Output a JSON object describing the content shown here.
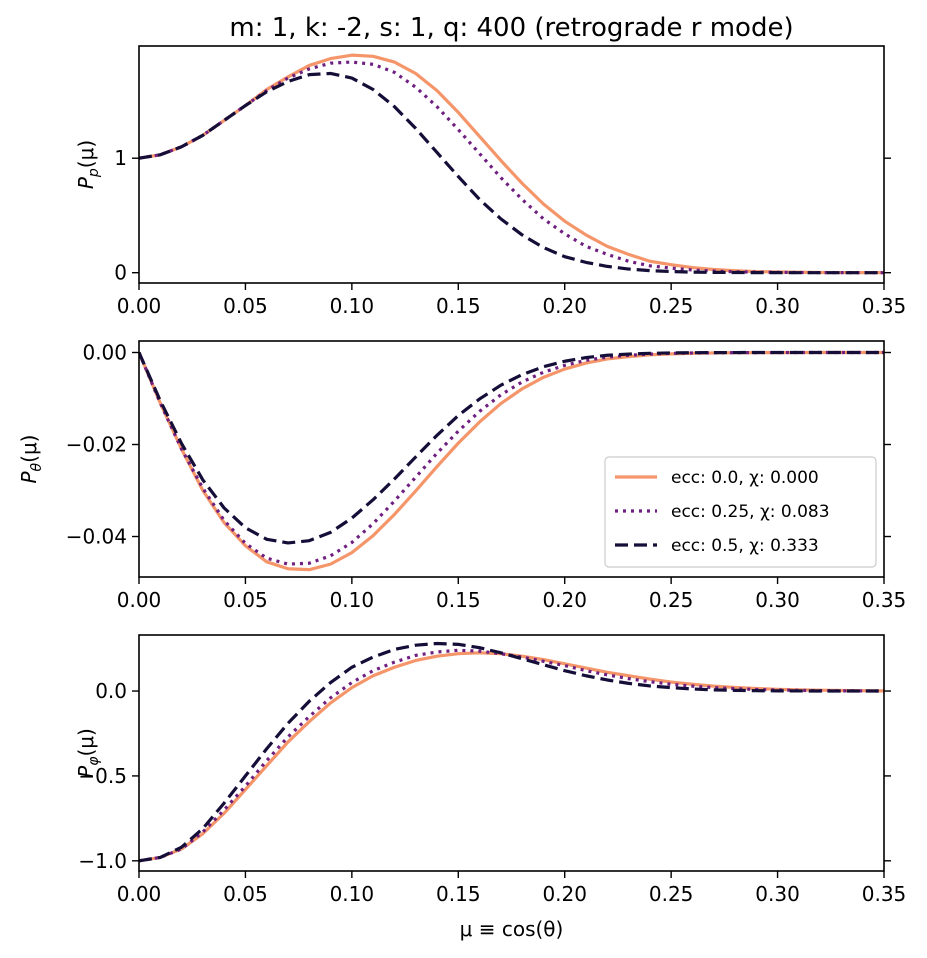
{
  "chart_data": {
    "type": "line",
    "title": "m: 1, k: -2, s: 1, q: 400  (retrograde r mode)",
    "xlabel": "μ ≡ cos(θ)",
    "xlim": [
      0,
      0.35
    ],
    "xticks": [
      0,
      0.05,
      0.1,
      0.15,
      0.2,
      0.25,
      0.3,
      0.35
    ],
    "xtick_labels": [
      "0.00",
      "0.05",
      "0.10",
      "0.15",
      "0.20",
      "0.25",
      "0.30",
      "0.35"
    ],
    "x": [
      0,
      0.01,
      0.02,
      0.03,
      0.04,
      0.05,
      0.06,
      0.07,
      0.08,
      0.09,
      0.1,
      0.11,
      0.12,
      0.13,
      0.14,
      0.15,
      0.16,
      0.17,
      0.18,
      0.19,
      0.2,
      0.21,
      0.22,
      0.23,
      0.24,
      0.25,
      0.26,
      0.27,
      0.28,
      0.29,
      0.3,
      0.31,
      0.32,
      0.33,
      0.34,
      0.35
    ],
    "legend": {
      "location": "right",
      "entries": [
        {
          "label": "ecc: 0.0, χ: 0.000",
          "color": "#f4956a",
          "style": "solid"
        },
        {
          "label": "ecc: 0.25, χ: 0.083",
          "color": "#6f1f80",
          "style": "dotted"
        },
        {
          "label": "ecc: 0.5, χ: 0.333",
          "color": "#150e38",
          "style": "dashed"
        }
      ]
    },
    "panels": [
      {
        "ylabel": "P_p(μ)",
        "ylim": [
          -0.09,
          1.98
        ],
        "yticks": [
          0,
          1
        ],
        "ytick_labels": [
          "0",
          "1"
        ],
        "series": [
          {
            "name": "ecc: 0.0, χ: 0.000",
            "values": [
              1.0,
              1.03,
              1.1,
              1.2,
              1.33,
              1.46,
              1.6,
              1.71,
              1.81,
              1.87,
              1.9,
              1.89,
              1.84,
              1.74,
              1.59,
              1.4,
              1.19,
              0.98,
              0.78,
              0.6,
              0.45,
              0.33,
              0.23,
              0.16,
              0.1,
              0.07,
              0.045,
              0.028,
              0.017,
              0.01,
              0.006,
              0.004,
              0.002,
              0.001,
              0.0006,
              0.0003
            ]
          },
          {
            "name": "ecc: 0.25, χ: 0.083",
            "values": [
              1.0,
              1.03,
              1.1,
              1.2,
              1.33,
              1.46,
              1.59,
              1.7,
              1.78,
              1.83,
              1.84,
              1.82,
              1.75,
              1.62,
              1.45,
              1.25,
              1.04,
              0.83,
              0.64,
              0.47,
              0.34,
              0.23,
              0.16,
              0.1,
              0.06,
              0.04,
              0.024,
              0.014,
              0.008,
              0.005,
              0.003,
              0.0015,
              0.0008,
              0.0004,
              0.0002,
              0.0001
            ]
          },
          {
            "name": "ecc: 0.5, χ: 0.333",
            "values": [
              1.0,
              1.03,
              1.1,
              1.2,
              1.33,
              1.46,
              1.58,
              1.67,
              1.73,
              1.74,
              1.7,
              1.6,
              1.45,
              1.26,
              1.05,
              0.84,
              0.64,
              0.47,
              0.33,
              0.22,
              0.14,
              0.09,
              0.055,
              0.032,
              0.018,
              0.01,
              0.005,
              0.003,
              0.0015,
              0.0007,
              0.0003,
              0.0001,
              0.0,
              0.0,
              0.0,
              0.0
            ]
          }
        ]
      },
      {
        "ylabel": "P_θ(μ)",
        "ylim": [
          -0.0488,
          0.0025
        ],
        "yticks": [
          0,
          -0.02,
          -0.04
        ],
        "ytick_labels": [
          "0.00",
          "−0.02",
          "−0.04"
        ],
        "series": [
          {
            "name": "ecc: 0.0, χ: 0.000",
            "values": [
              0.0,
              -0.011,
              -0.021,
              -0.03,
              -0.037,
              -0.042,
              -0.0455,
              -0.047,
              -0.0472,
              -0.046,
              -0.0435,
              -0.0398,
              -0.0352,
              -0.0301,
              -0.0248,
              -0.0197,
              -0.0151,
              -0.0111,
              -0.0079,
              -0.0054,
              -0.0036,
              -0.0023,
              -0.0014,
              -0.0009,
              -0.0005,
              -0.0003,
              -0.00017,
              -0.0001,
              -5e-05,
              -3e-05,
              -2e-05,
              -1e-05,
              0.0,
              0.0,
              0.0,
              0.0
            ]
          },
          {
            "name": "ecc: 0.25, χ: 0.083",
            "values": [
              0.0,
              -0.011,
              -0.021,
              -0.0295,
              -0.0365,
              -0.0415,
              -0.0447,
              -0.046,
              -0.0458,
              -0.0442,
              -0.0413,
              -0.0372,
              -0.0323,
              -0.0271,
              -0.0219,
              -0.0171,
              -0.0128,
              -0.0092,
              -0.0064,
              -0.0043,
              -0.0028,
              -0.0017,
              -0.001,
              -0.0006,
              -0.00034,
              -0.00019,
              -0.0001,
              -6e-05,
              -3e-05,
              -2e-05,
              -1e-05,
              0.0,
              0.0,
              0.0,
              0.0,
              0.0
            ]
          },
          {
            "name": "ecc: 0.5, χ: 0.333",
            "values": [
              0.0,
              -0.0105,
              -0.0198,
              -0.0277,
              -0.0338,
              -0.0381,
              -0.0406,
              -0.0414,
              -0.0409,
              -0.0391,
              -0.036,
              -0.032,
              -0.0275,
              -0.0227,
              -0.018,
              -0.0137,
              -0.0101,
              -0.0071,
              -0.0048,
              -0.0031,
              -0.0019,
              -0.0011,
              -0.0006,
              -0.00034,
              -0.00018,
              -9e-05,
              -4e-05,
              -2e-05,
              -1e-05,
              0.0,
              0.0,
              0.0,
              0.0,
              0.0,
              0.0,
              0.0
            ]
          }
        ]
      },
      {
        "ylabel": "P_φ(μ)",
        "ylim": [
          -1.06,
          0.33
        ],
        "yticks": [
          0,
          -0.5,
          -1.0
        ],
        "ytick_labels": [
          "0.0",
          "−0.5",
          "−1.0"
        ],
        "series": [
          {
            "name": "ecc: 0.0, χ: 0.000",
            "values": [
              -1.0,
              -0.98,
              -0.93,
              -0.84,
              -0.72,
              -0.58,
              -0.44,
              -0.3,
              -0.18,
              -0.07,
              0.02,
              0.09,
              0.14,
              0.18,
              0.205,
              0.22,
              0.225,
              0.22,
              0.205,
              0.185,
              0.16,
              0.135,
              0.11,
              0.09,
              0.07,
              0.053,
              0.04,
              0.029,
              0.021,
              0.015,
              0.01,
              0.007,
              0.005,
              0.003,
              0.002,
              0.001
            ]
          },
          {
            "name": "ecc: 0.25, χ: 0.083",
            "values": [
              -1.0,
              -0.98,
              -0.93,
              -0.83,
              -0.7,
              -0.56,
              -0.41,
              -0.27,
              -0.15,
              -0.04,
              0.05,
              0.12,
              0.17,
              0.21,
              0.23,
              0.24,
              0.235,
              0.22,
              0.2,
              0.175,
              0.15,
              0.12,
              0.095,
              0.073,
              0.055,
              0.04,
              0.029,
              0.02,
              0.014,
              0.009,
              0.006,
              0.004,
              0.002,
              0.001,
              0.0005,
              0.0002
            ]
          },
          {
            "name": "ecc: 0.5, χ: 0.333",
            "values": [
              -1.0,
              -0.98,
              -0.92,
              -0.81,
              -0.66,
              -0.5,
              -0.34,
              -0.19,
              -0.06,
              0.05,
              0.14,
              0.2,
              0.245,
              0.27,
              0.28,
              0.275,
              0.255,
              0.225,
              0.19,
              0.155,
              0.12,
              0.09,
              0.065,
              0.045,
              0.03,
              0.02,
              0.012,
              0.007,
              0.004,
              0.002,
              0.001,
              0.0005,
              0.0002,
              0.0,
              0.0,
              0.0
            ]
          }
        ]
      }
    ]
  }
}
